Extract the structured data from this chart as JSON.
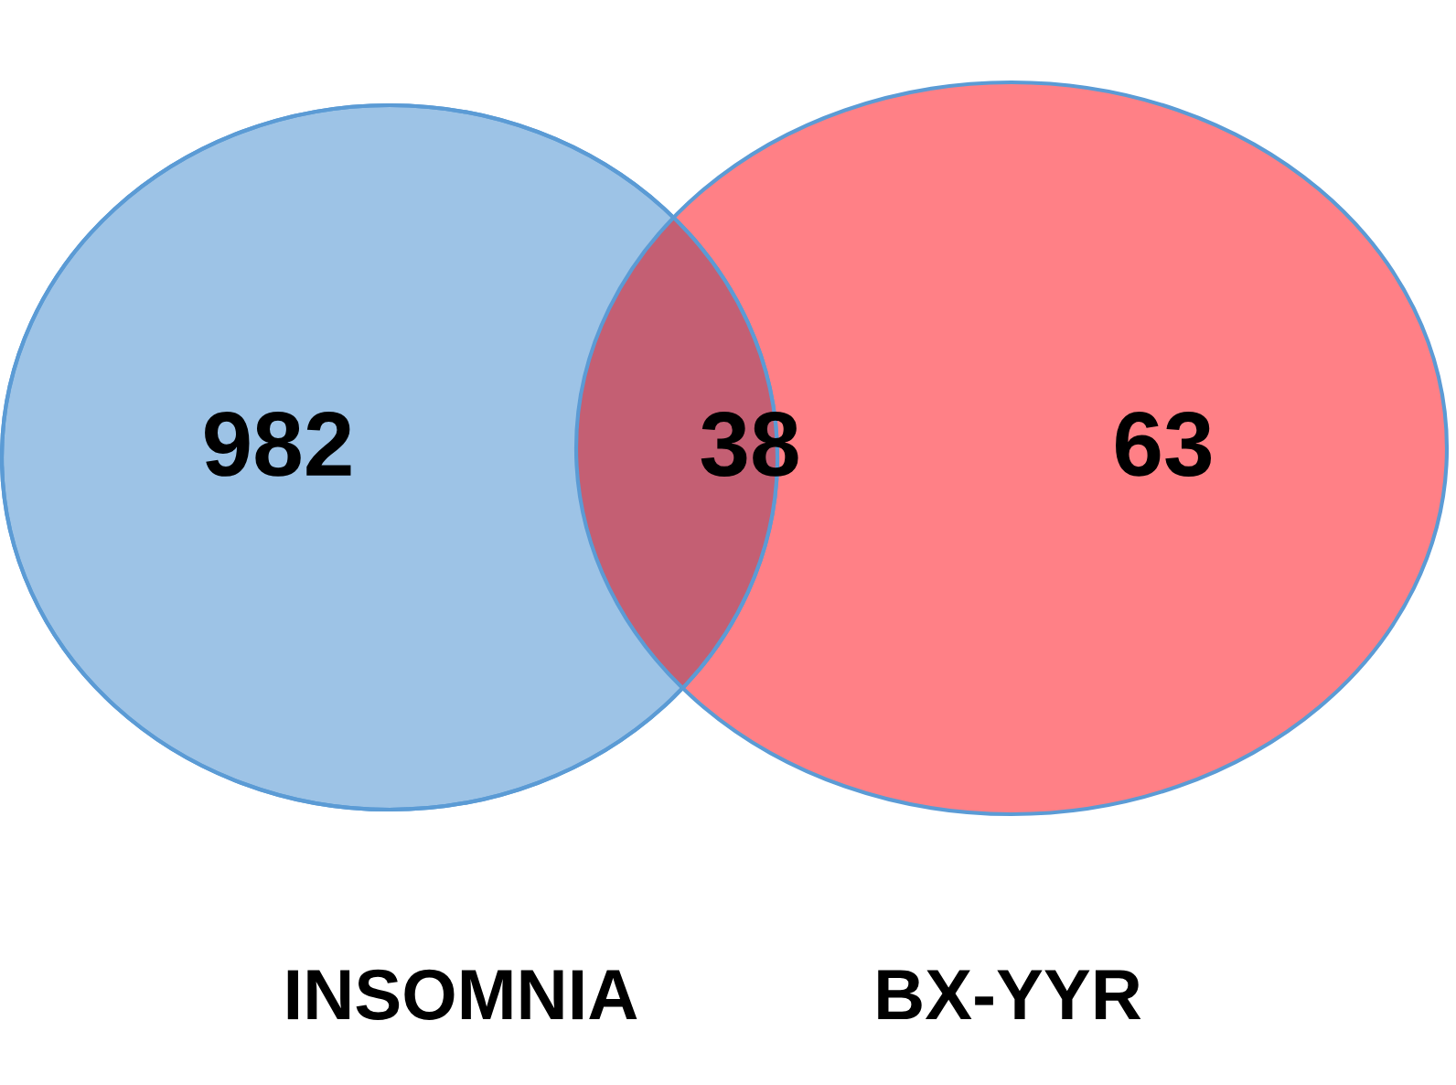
{
  "chart_data": {
    "type": "other",
    "categories": [
      "INSOMNIA",
      null,
      "BX-YYR"
    ],
    "values": [
      982,
      38,
      63
    ],
    "colors": [
      "#9dc3e6",
      "#c45f73",
      "#ff8086"
    ],
    "data_labels": true
  }
}
